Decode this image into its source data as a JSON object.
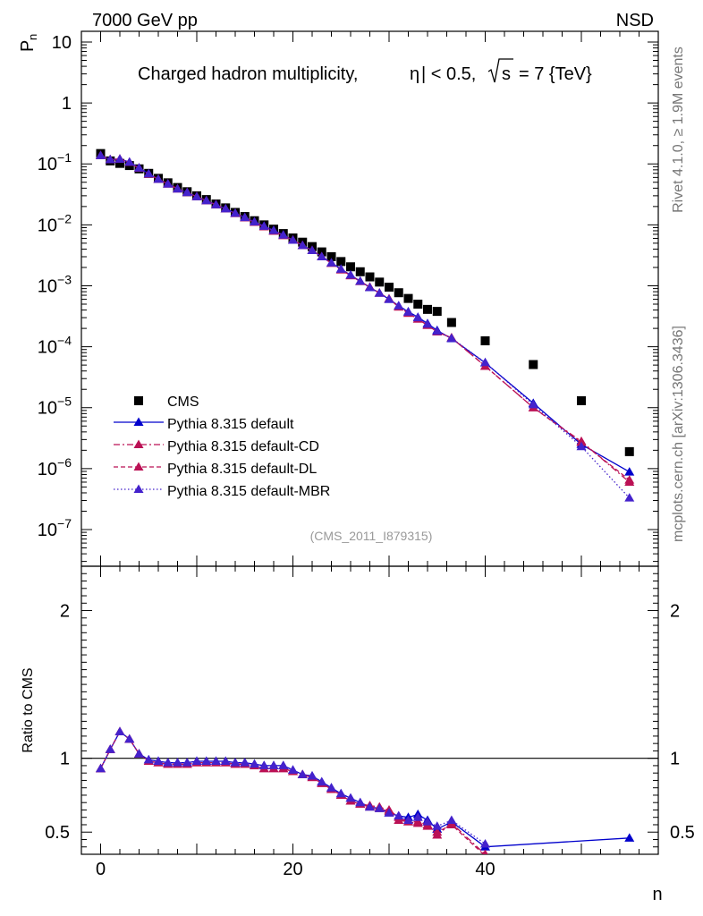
{
  "header": {
    "left": "7000 GeV pp",
    "right": "NSD"
  },
  "side": {
    "rivet": "Rivet 4.1.0, ≥ 1.9M events",
    "mcplots": "mcplots.cern.ch [arXiv:1306.3436]"
  },
  "chart_data": [
    {
      "type": "scatter",
      "panel": "main",
      "title": "Charged hadron multiplicity, |η| < 0.5, √s = 7 {TeV}",
      "title_parts": {
        "pre": "Charged hadron multiplicity,",
        "eta": "η",
        "mid": "| < 0.5,",
        "s": "s",
        "post": "= 7 {TeV}"
      },
      "analysis_id": "(CMS_2011_I879315)",
      "ylabel": "P",
      "ylabel_sub": "n",
      "yscale": "log",
      "ylim": [
        2.5e-08,
        15
      ],
      "xlim": [
        -2,
        58
      ],
      "ytick_labels": [
        {
          "value": 10,
          "mantissa": "10",
          "exp": ""
        },
        {
          "value": 1,
          "mantissa": "1",
          "exp": ""
        },
        {
          "value": 0.1,
          "mantissa": "10",
          "exp": "−1"
        },
        {
          "value": 0.01,
          "mantissa": "10",
          "exp": "−2"
        },
        {
          "value": 0.001,
          "mantissa": "10",
          "exp": "−3"
        },
        {
          "value": 0.0001,
          "mantissa": "10",
          "exp": "−4"
        },
        {
          "value": 1e-05,
          "mantissa": "10",
          "exp": "−5"
        },
        {
          "value": 1e-06,
          "mantissa": "10",
          "exp": "−6"
        },
        {
          "value": 1e-07,
          "mantissa": "10",
          "exp": "−7"
        }
      ],
      "legend": [
        "CMS",
        "Pythia 8.315 default",
        "Pythia 8.315 default-CD",
        "Pythia 8.315 default-DL",
        "Pythia 8.315 default-MBR"
      ],
      "legend_position": "bottom-left",
      "series": [
        {
          "name": "CMS",
          "color": "#000000",
          "marker": "square",
          "line": "none",
          "x": [
            0,
            1,
            2,
            3,
            4,
            5,
            6,
            7,
            8,
            9,
            10,
            11,
            12,
            13,
            14,
            15,
            16,
            17,
            18,
            19,
            20,
            21,
            22,
            23,
            24,
            25,
            26,
            27,
            28,
            29,
            30,
            31,
            32,
            33,
            34,
            35,
            36.5,
            40,
            45,
            50,
            55
          ],
          "y": [
            0.148,
            0.112,
            0.102,
            0.094,
            0.083,
            0.07,
            0.058,
            0.049,
            0.041,
            0.035,
            0.03,
            0.026,
            0.022,
            0.019,
            0.016,
            0.0137,
            0.0117,
            0.01,
            0.0085,
            0.0072,
            0.0061,
            0.0052,
            0.0044,
            0.0036,
            0.003,
            0.0025,
            0.00205,
            0.0017,
            0.0014,
            0.00115,
            0.00095,
            0.00077,
            0.00062,
            0.0005,
            0.00041,
            0.00038,
            0.00025,
            0.000125,
            5.1e-05,
            1.3e-05,
            1.9e-06
          ]
        },
        {
          "name": "Pythia 8.315 default",
          "color": "#0000cc",
          "marker": "triangle",
          "line": "solid",
          "x": [
            0,
            1,
            2,
            3,
            4,
            5,
            6,
            7,
            8,
            9,
            10,
            11,
            12,
            13,
            14,
            15,
            16,
            17,
            18,
            19,
            20,
            21,
            22,
            23,
            24,
            25,
            26,
            27,
            28,
            29,
            30,
            31,
            32,
            33,
            34,
            35,
            36.5,
            40,
            45,
            50,
            55
          ],
          "y": [
            0.137,
            0.118,
            0.12,
            0.107,
            0.086,
            0.069,
            0.056,
            0.047,
            0.039,
            0.034,
            0.029,
            0.025,
            0.0214,
            0.0184,
            0.0155,
            0.0132,
            0.0112,
            0.0095,
            0.0081,
            0.0068,
            0.0056,
            0.0046,
            0.0038,
            0.003,
            0.00238,
            0.00188,
            0.0015,
            0.00119,
            0.00094,
            0.00076,
            0.0006,
            0.00047,
            0.000375,
            0.000305,
            0.00024,
            0.000185,
            0.000136,
            5.45e-05,
            1.18e-05,
            2.5e-06,
            8.8e-07
          ]
        },
        {
          "name": "Pythia 8.315 default-CD",
          "color": "#bb1155",
          "marker": "triangle",
          "line": "dashdot",
          "x": [
            0,
            1,
            2,
            3,
            4,
            5,
            6,
            7,
            8,
            9,
            10,
            11,
            12,
            13,
            14,
            15,
            16,
            17,
            18,
            19,
            20,
            21,
            22,
            23,
            24,
            25,
            26,
            27,
            28,
            29,
            30,
            31,
            32,
            33,
            34,
            35,
            36.5,
            40,
            45,
            50,
            55
          ],
          "y": [
            0.137,
            0.118,
            0.12,
            0.106,
            0.085,
            0.068,
            0.056,
            0.047,
            0.039,
            0.034,
            0.029,
            0.025,
            0.0213,
            0.0183,
            0.0154,
            0.0131,
            0.011,
            0.0093,
            0.0079,
            0.0067,
            0.0056,
            0.0046,
            0.0038,
            0.003,
            0.00235,
            0.00183,
            0.00147,
            0.00118,
            0.00095,
            0.00076,
            0.00061,
            0.00045,
            0.000355,
            0.000285,
            0.000225,
            0.000175,
            0.00014,
            4.8e-05,
            1e-05,
            2.8e-06,
            6e-07
          ]
        },
        {
          "name": "Pythia 8.315 default-DL",
          "color": "#bb1155",
          "marker": "triangle",
          "line": "dashed",
          "x": [
            0,
            1,
            2,
            3,
            4,
            5,
            6,
            7,
            8,
            9,
            10,
            11,
            12,
            13,
            14,
            15,
            16,
            17,
            18,
            19,
            20,
            21,
            22,
            23,
            24,
            25,
            26,
            27,
            28,
            29,
            30,
            31,
            32,
            33,
            34,
            35,
            36.5,
            40,
            45,
            50,
            55
          ],
          "y": [
            0.137,
            0.118,
            0.12,
            0.106,
            0.085,
            0.068,
            0.056,
            0.047,
            0.039,
            0.034,
            0.029,
            0.025,
            0.0213,
            0.0183,
            0.0154,
            0.0131,
            0.011,
            0.0093,
            0.0079,
            0.0067,
            0.0056,
            0.0046,
            0.0038,
            0.003,
            0.00235,
            0.00183,
            0.00147,
            0.00118,
            0.00095,
            0.00076,
            0.00061,
            0.00045,
            0.000355,
            0.000285,
            0.000225,
            0.000175,
            0.00014,
            4.8e-05,
            1e-05,
            2.7e-06,
            6.5e-07
          ]
        },
        {
          "name": "Pythia 8.315 default-MBR",
          "color": "#4422cc",
          "marker": "triangle",
          "line": "dotted",
          "x": [
            0,
            1,
            2,
            3,
            4,
            5,
            6,
            7,
            8,
            9,
            10,
            11,
            12,
            13,
            14,
            15,
            16,
            17,
            18,
            19,
            20,
            21,
            22,
            23,
            24,
            25,
            26,
            27,
            28,
            29,
            30,
            31,
            32,
            33,
            34,
            35,
            36.5,
            40,
            45,
            50,
            55
          ],
          "y": [
            0.137,
            0.118,
            0.12,
            0.107,
            0.086,
            0.069,
            0.056,
            0.047,
            0.039,
            0.034,
            0.029,
            0.025,
            0.0214,
            0.0184,
            0.0155,
            0.0132,
            0.0112,
            0.0095,
            0.0081,
            0.0068,
            0.0056,
            0.0046,
            0.0038,
            0.003,
            0.00238,
            0.00188,
            0.0015,
            0.00119,
            0.00094,
            0.00076,
            0.0006,
            0.00047,
            0.00037,
            0.0003,
            0.000235,
            0.00018,
            0.000138,
            5.5e-05,
            1.12e-05,
            2.3e-06,
            3.3e-07
          ]
        }
      ]
    },
    {
      "type": "line",
      "panel": "ratio",
      "ylabel": "Ratio to CMS",
      "xlabel": "n",
      "ylim": [
        0.35,
        2.3
      ],
      "xlim": [
        -2,
        58
      ],
      "reference_line": 1,
      "xticks": [
        0,
        20,
        40
      ],
      "xtick_labels": [
        "0",
        "20",
        "40"
      ],
      "yticks": [
        0.5,
        1,
        2
      ],
      "ytick_labels": [
        "0.5",
        "1",
        "2"
      ],
      "series": [
        {
          "name": "Pythia 8.315 default",
          "color": "#0000cc",
          "line": "solid",
          "x": [
            0,
            1,
            2,
            3,
            4,
            5,
            6,
            7,
            8,
            9,
            10,
            11,
            12,
            13,
            14,
            15,
            16,
            17,
            18,
            19,
            20,
            21,
            22,
            23,
            24,
            25,
            26,
            27,
            28,
            29,
            30,
            31,
            32,
            33,
            34,
            35,
            36.5,
            40,
            55
          ],
          "y": [
            0.93,
            1.06,
            1.18,
            1.13,
            1.03,
            0.99,
            0.98,
            0.97,
            0.97,
            0.97,
            0.98,
            0.98,
            0.98,
            0.98,
            0.97,
            0.97,
            0.96,
            0.95,
            0.95,
            0.95,
            0.92,
            0.89,
            0.88,
            0.84,
            0.8,
            0.76,
            0.73,
            0.7,
            0.67,
            0.66,
            0.63,
            0.61,
            0.6,
            0.62,
            0.58,
            0.52,
            0.57,
            0.4,
            0.46
          ]
        },
        {
          "name": "Pythia 8.315 default-CD",
          "color": "#bb1155",
          "line": "dashdot",
          "x": [
            0,
            1,
            2,
            3,
            4,
            5,
            6,
            7,
            8,
            9,
            10,
            11,
            12,
            13,
            14,
            15,
            16,
            17,
            18,
            19,
            20,
            21,
            22,
            23,
            24,
            25,
            26,
            27,
            28,
            29,
            30,
            31,
            32,
            33,
            34,
            35,
            36.5,
            40
          ],
          "y": [
            0.93,
            1.06,
            1.18,
            1.13,
            1.03,
            0.98,
            0.97,
            0.96,
            0.96,
            0.96,
            0.97,
            0.97,
            0.97,
            0.97,
            0.96,
            0.96,
            0.95,
            0.93,
            0.93,
            0.93,
            0.91,
            0.89,
            0.87,
            0.83,
            0.79,
            0.75,
            0.71,
            0.69,
            0.68,
            0.67,
            0.65,
            0.6,
            0.57,
            0.57,
            0.55,
            0.48,
            0.56,
            0.35
          ]
        },
        {
          "name": "Pythia 8.315 default-DL",
          "color": "#bb1155",
          "line": "dashed",
          "x": [
            0,
            1,
            2,
            3,
            4,
            5,
            6,
            7,
            8,
            9,
            10,
            11,
            12,
            13,
            14,
            15,
            16,
            17,
            18,
            19,
            20,
            21,
            22,
            23,
            24,
            25,
            26,
            27,
            28,
            29,
            30,
            31,
            32,
            33,
            34,
            35,
            36.5,
            40
          ],
          "y": [
            0.93,
            1.06,
            1.18,
            1.13,
            1.03,
            0.98,
            0.97,
            0.96,
            0.96,
            0.96,
            0.97,
            0.97,
            0.97,
            0.97,
            0.96,
            0.96,
            0.95,
            0.93,
            0.93,
            0.93,
            0.91,
            0.89,
            0.87,
            0.83,
            0.79,
            0.75,
            0.71,
            0.69,
            0.67,
            0.66,
            0.64,
            0.58,
            0.57,
            0.56,
            0.54,
            0.5,
            0.55,
            0.34
          ]
        },
        {
          "name": "Pythia 8.315 default-MBR",
          "color": "#4422cc",
          "line": "dotted",
          "x": [
            0,
            1,
            2,
            3,
            4,
            5,
            6,
            7,
            8,
            9,
            10,
            11,
            12,
            13,
            14,
            15,
            16,
            17,
            18,
            19,
            20,
            21,
            22,
            23,
            24,
            25,
            26,
            27,
            28,
            29,
            30,
            31,
            32,
            33,
            34,
            35,
            36.5,
            40
          ],
          "y": [
            0.93,
            1.06,
            1.18,
            1.13,
            1.03,
            0.99,
            0.98,
            0.97,
            0.97,
            0.97,
            0.98,
            0.98,
            0.98,
            0.98,
            0.97,
            0.97,
            0.96,
            0.95,
            0.95,
            0.95,
            0.92,
            0.89,
            0.88,
            0.84,
            0.8,
            0.76,
            0.73,
            0.7,
            0.67,
            0.66,
            0.63,
            0.61,
            0.58,
            0.6,
            0.57,
            0.54,
            0.58,
            0.42
          ]
        }
      ]
    }
  ]
}
